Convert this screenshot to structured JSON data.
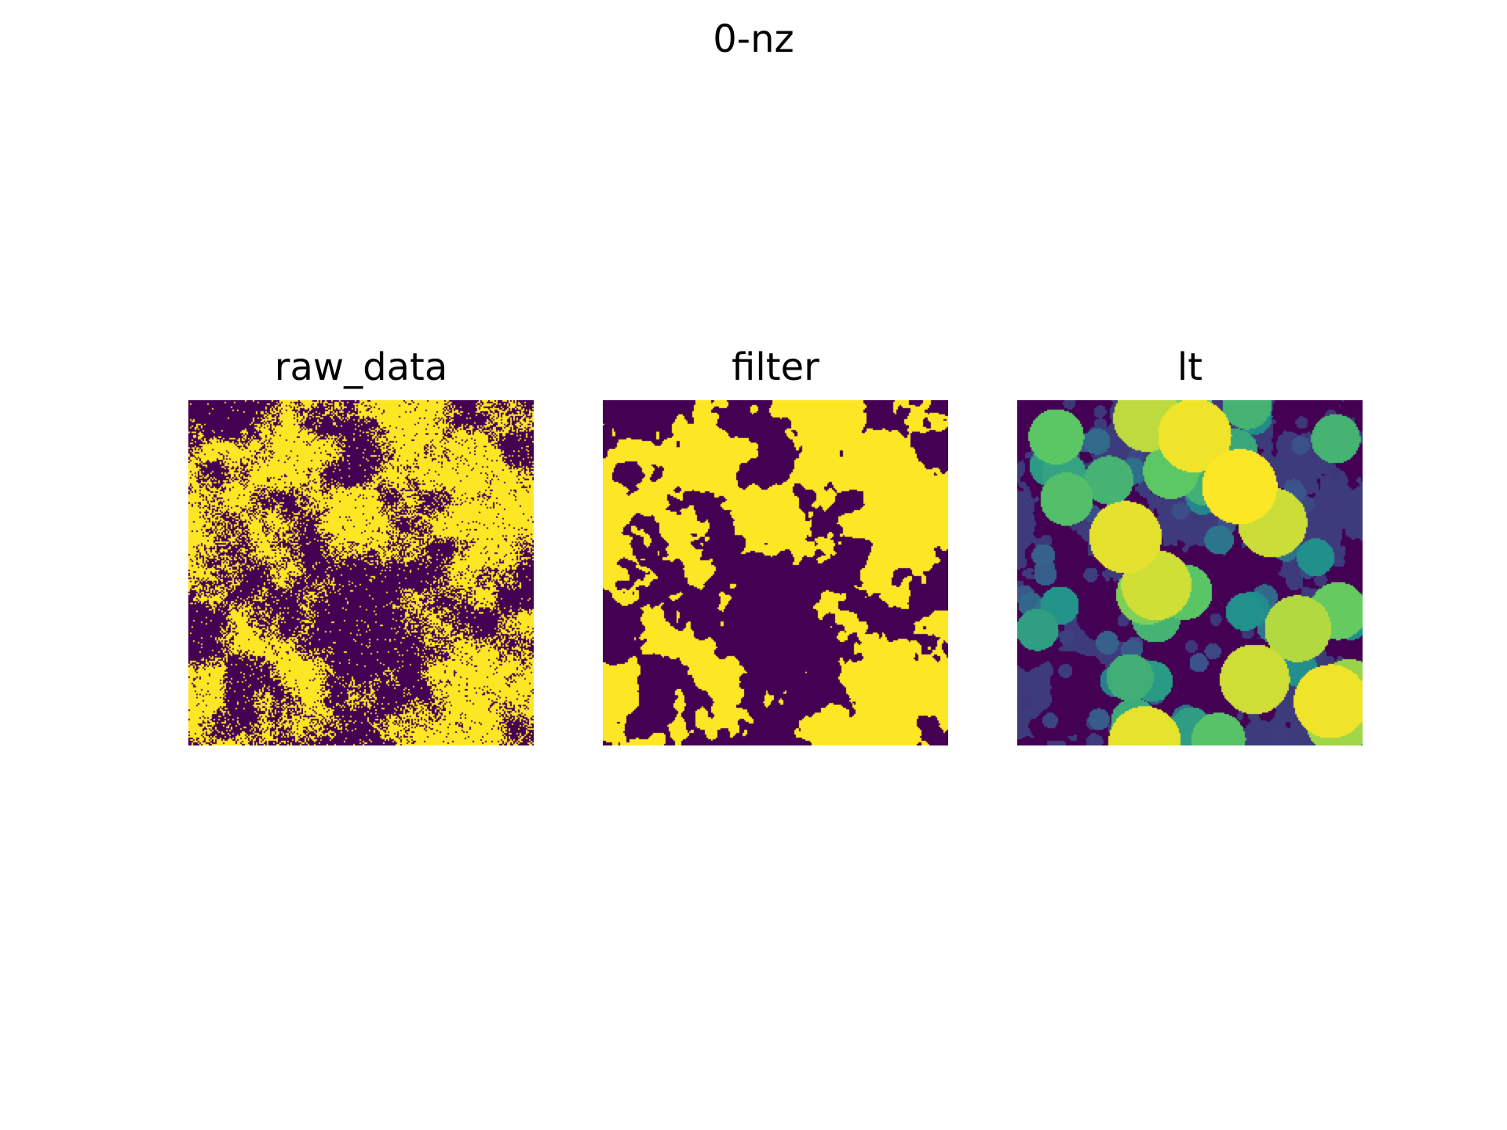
{
  "figure": {
    "suptitle": "0-nz",
    "panels": [
      {
        "title": "raw_data",
        "colormap": "viridis",
        "values": "binary",
        "texture": "speckled"
      },
      {
        "title": "filter",
        "colormap": "viridis",
        "values": "binary",
        "texture": "smoothed"
      },
      {
        "title": "lt",
        "colormap": "viridis",
        "values": "continuous",
        "texture": "local-thickness blobs"
      }
    ]
  },
  "colors": {
    "viridis_low": "#440154",
    "viridis_high": "#fde725",
    "background": "#ffffff"
  }
}
